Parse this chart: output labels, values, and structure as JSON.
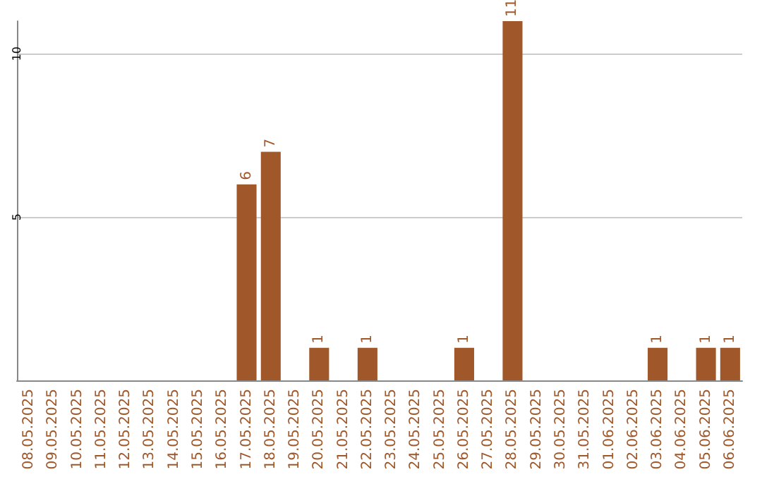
{
  "chart_data": {
    "type": "bar",
    "categories": [
      "08.05.2025",
      "09.05.2025",
      "10.05.2025",
      "11.05.2025",
      "12.05.2025",
      "13.05.2025",
      "14.05.2025",
      "15.05.2025",
      "16.05.2025",
      "17.05.2025",
      "18.05.2025",
      "19.05.2025",
      "20.05.2025",
      "21.05.2025",
      "22.05.2025",
      "23.05.2025",
      "24.05.2025",
      "25.05.2025",
      "26.05.2025",
      "27.05.2025",
      "28.05.2025",
      "29.05.2025",
      "30.05.2025",
      "31.05.2025",
      "01.06.2025",
      "02.06.2025",
      "03.06.2025",
      "04.06.2025",
      "05.06.2025",
      "06.06.2025"
    ],
    "values": [
      0,
      0,
      0,
      0,
      0,
      0,
      0,
      0,
      0,
      6,
      7,
      0,
      1,
      0,
      1,
      0,
      0,
      0,
      1,
      0,
      11,
      0,
      0,
      0,
      0,
      0,
      1,
      0,
      1,
      1
    ],
    "value_labels": [
      null,
      null,
      null,
      null,
      null,
      null,
      null,
      null,
      null,
      "6",
      "7",
      null,
      "1",
      null,
      "1",
      null,
      null,
      null,
      "1",
      null,
      "11",
      null,
      null,
      null,
      null,
      null,
      "1",
      null,
      "1",
      "1"
    ],
    "color": "#a0582a",
    "ylim": [
      0,
      11
    ],
    "yticks": [
      5,
      10
    ],
    "grid": "y"
  }
}
